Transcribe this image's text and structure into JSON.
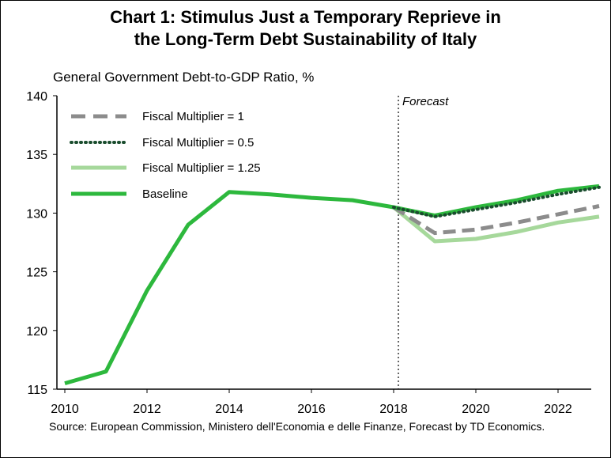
{
  "title_line1": "Chart 1: Stimulus Just a Temporary Reprieve in",
  "title_line2": "the Long-Term Debt Sustainability of Italy",
  "source": "Source: European Commission, Ministero dell'Economia e delle Finanze, Forecast by TD Economics.",
  "chart_data": {
    "type": "line",
    "title": "Chart 1: Stimulus Just a Temporary Reprieve in the Long-Term Debt Sustainability of Italy",
    "ylabel": "General Government Debt-to-GDP Ratio, %",
    "xlabel": "",
    "xlim": [
      2010,
      2023
    ],
    "ylim": [
      115,
      140
    ],
    "xticks": [
      2010,
      2012,
      2014,
      2016,
      2018,
      2020,
      2022
    ],
    "yticks": [
      115,
      120,
      125,
      130,
      135,
      140
    ],
    "forecast_label": "Forecast",
    "forecast_start": 2018,
    "legend_position": "top-left",
    "grid": false,
    "series": [
      {
        "name": "Fiscal Multiplier = 1",
        "style": "dashed",
        "color": "#8c8c8c",
        "x": [
          2018,
          2019,
          2020,
          2021,
          2022,
          2023
        ],
        "values": [
          130.5,
          128.3,
          128.6,
          129.2,
          129.9,
          130.6
        ]
      },
      {
        "name": "Fiscal Multiplier = 0.5",
        "style": "dotted",
        "color": "#1a4d2e",
        "x": [
          2018,
          2019,
          2020,
          2021,
          2022,
          2023
        ],
        "values": [
          130.5,
          129.7,
          130.3,
          130.9,
          131.6,
          132.2
        ]
      },
      {
        "name": "Fiscal Multiplier = 1.25",
        "style": "solid",
        "color": "#a6d89b",
        "x": [
          2018,
          2019,
          2020,
          2021,
          2022,
          2023
        ],
        "values": [
          130.5,
          127.6,
          127.8,
          128.4,
          129.2,
          129.7
        ]
      },
      {
        "name": "Baseline",
        "style": "solid",
        "color": "#2db83d",
        "x": [
          2010,
          2011,
          2012,
          2013,
          2014,
          2015,
          2016,
          2017,
          2018,
          2019,
          2020,
          2021,
          2022,
          2023
        ],
        "values": [
          115.5,
          116.5,
          123.4,
          129.0,
          131.8,
          131.6,
          131.3,
          131.1,
          130.5,
          129.8,
          130.5,
          131.1,
          131.9,
          132.3
        ]
      }
    ]
  }
}
